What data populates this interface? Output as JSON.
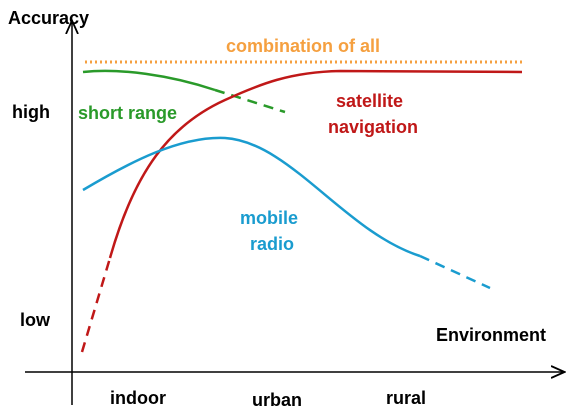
{
  "axes": {
    "y_label": "Accuracy",
    "y_high": "high",
    "y_low": "low",
    "x_label": "Environment",
    "x_categories": [
      "indoor",
      "urban",
      "rural"
    ]
  },
  "curves": {
    "combination": "combination of all",
    "short_range": "short range",
    "satellite": [
      "satellite",
      "navigation"
    ],
    "mobile": [
      "mobile",
      "radio"
    ]
  }
}
